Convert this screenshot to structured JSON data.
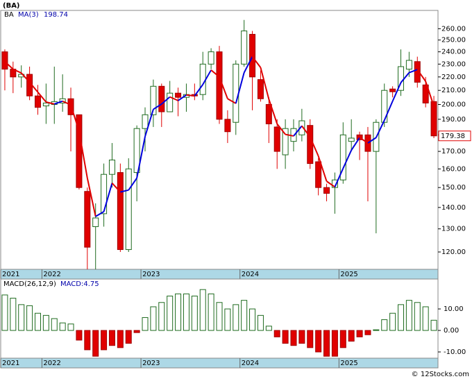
{
  "title": "(BA)",
  "footer": "© 12Stocks.com",
  "chart_data": [
    {
      "type": "candlestick",
      "ticker": "BA",
      "ma_name": "MA(3)",
      "open": [
        240,
        226,
        220,
        222,
        206,
        199,
        200,
        201,
        204,
        193,
        148,
        131,
        137,
        157,
        158,
        121,
        158,
        184,
        193,
        213,
        195,
        208,
        205,
        207,
        207,
        230,
        240,
        190,
        188,
        230,
        255,
        218,
        200,
        185,
        168,
        176,
        180,
        186,
        164,
        150,
        150,
        154,
        176,
        180,
        180,
        170,
        188,
        211,
        210,
        226,
        232,
        214,
        202
      ],
      "high": [
        242,
        232,
        229,
        228,
        214,
        215,
        228,
        222,
        212,
        193,
        150,
        142,
        163,
        175,
        163,
        166,
        186,
        198,
        218,
        215,
        217,
        212,
        215,
        215,
        240,
        243,
        245,
        196,
        233,
        268,
        258,
        225,
        205,
        190,
        190,
        190,
        197,
        190,
        166,
        152,
        158,
        188,
        190,
        182,
        185,
        190,
        215,
        213,
        242,
        240,
        236,
        220,
        206
      ],
      "low": [
        210,
        208,
        212,
        203,
        193,
        187,
        187,
        195,
        170,
        149,
        113,
        113,
        131,
        150,
        120,
        120,
        143,
        170,
        185,
        185,
        195,
        192,
        195,
        203,
        203,
        226,
        187,
        175,
        180,
        228,
        196,
        202,
        175,
        160,
        160,
        170,
        176,
        160,
        146,
        143,
        137,
        152,
        170,
        165,
        143,
        128,
        185,
        205,
        206,
        220,
        212,
        198,
        178
      ],
      "close": [
        226,
        220,
        222,
        206,
        198,
        201,
        202,
        204,
        193,
        150,
        122,
        135,
        157,
        165,
        121,
        160,
        184,
        193,
        213,
        195,
        208,
        205,
        207,
        206,
        230,
        240,
        190,
        182,
        230,
        258,
        220,
        204,
        187,
        170,
        184,
        184,
        189,
        163,
        150,
        147,
        154,
        180,
        178,
        177,
        170,
        188,
        210,
        209,
        228,
        233,
        216,
        201,
        179.38
      ],
      "ma": [
        232,
        226,
        223,
        216,
        208.7,
        201.7,
        200.3,
        202.3,
        199.7,
        182.3,
        155,
        135.7,
        138,
        152.3,
        147.7,
        148.7,
        155,
        179,
        196.7,
        200.3,
        205.3,
        202.7,
        206.7,
        206,
        214.3,
        225.3,
        220,
        204,
        200.7,
        223.3,
        236,
        227.3,
        203.7,
        187,
        180.3,
        179.3,
        185.7,
        178.7,
        167.3,
        153.3,
        150.3,
        160.3,
        170.7,
        178.3,
        175,
        178.3,
        189.3,
        202.3,
        215.7,
        223.3,
        225.7,
        216.7,
        198.74
      ],
      "up_color": "#1f6b1f",
      "down_color": "#e00000",
      "ma_up_color": "#0000dd",
      "ma_down_color": "#e00000",
      "log_scale": true,
      "ylim": [
        113,
        277
      ],
      "yticks": [
        {
          "value": 120,
          "label": "120.00"
        },
        {
          "value": 130,
          "label": "130.00"
        },
        {
          "value": 140,
          "label": "140.00"
        },
        {
          "value": 150,
          "label": "150.00"
        },
        {
          "value": 160,
          "label": "160.00"
        },
        {
          "value": 170,
          "label": "170.00"
        },
        {
          "value": 180,
          "label": "180.00"
        },
        {
          "value": 190,
          "label": "190.00"
        },
        {
          "value": 200,
          "label": "200.00"
        },
        {
          "value": 210,
          "label": "210.00"
        },
        {
          "value": 220,
          "label": "220.00"
        },
        {
          "value": 230,
          "label": "230.00"
        },
        {
          "value": 240,
          "label": "240.00"
        },
        {
          "value": 250,
          "label": "250.00"
        },
        {
          "value": 260,
          "label": "260.00"
        }
      ],
      "xlim": [
        -0.5,
        52.5
      ],
      "xticks": [
        {
          "value": -0.5,
          "label": "2021"
        },
        {
          "value": 4.5,
          "label": "2022"
        },
        {
          "value": 16.5,
          "label": "2023"
        },
        {
          "value": 28.5,
          "label": "2024"
        },
        {
          "value": 40.5,
          "label": "2025"
        }
      ]
    },
    {
      "type": "bar",
      "name": "MACD(26,12,9)",
      "value_name": "MACD:",
      "values": [
        16.5,
        15,
        12,
        11.5,
        8,
        7,
        5.5,
        3.5,
        3,
        -4.5,
        -9,
        -12,
        -9,
        -7,
        -8,
        -6,
        -1,
        6,
        11,
        13,
        16,
        17,
        17,
        16,
        19,
        17,
        13,
        10,
        12,
        14,
        10,
        7,
        2,
        -3,
        -6,
        -7,
        -6,
        -8,
        -10,
        -12,
        -12,
        -8,
        -5,
        -3,
        -2,
        0.3,
        5,
        8,
        12,
        14,
        13,
        11,
        4.75
      ],
      "pos_color": "#1f6b1f",
      "neg_color": "#e00000",
      "ylim": [
        -12.9,
        23.9
      ],
      "yticks": [
        {
          "value": 10,
          "label": "10.00"
        },
        {
          "value": 0,
          "label": "0.00"
        },
        {
          "value": -10,
          "label": "-10.00"
        }
      ]
    }
  ]
}
